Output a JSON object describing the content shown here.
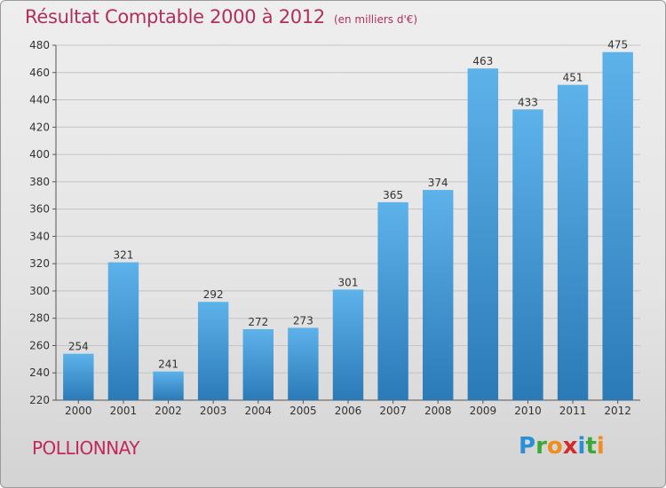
{
  "title": "Résultat Comptable 2000 à 2012",
  "subtitle": "(en milliers d'€)",
  "commune": "POLLIONNAY",
  "logo": {
    "letters": [
      "P",
      "r",
      "o",
      "x",
      "i",
      "t",
      "i"
    ],
    "colors": [
      "#2a8fd6",
      "#3aaa35",
      "#f28c1a",
      "#d42a2a",
      "#2a8fd6",
      "#3aaa35",
      "#f28c1a"
    ]
  },
  "colors": {
    "bar_top": "#5eb2ea",
    "bar_bottom": "#2a7ab8",
    "title": "#b0305a"
  },
  "chart_data": {
    "type": "bar",
    "title": "Résultat Comptable 2000 à 2012",
    "subtitle": "(en milliers d'€)",
    "categories": [
      "2000",
      "2001",
      "2002",
      "2003",
      "2004",
      "2005",
      "2006",
      "2007",
      "2008",
      "2009",
      "2010",
      "2011",
      "2012"
    ],
    "values": [
      254,
      321,
      241,
      292,
      272,
      273,
      301,
      365,
      374,
      463,
      433,
      451,
      475
    ],
    "ylim": [
      220,
      480
    ],
    "yticks": [
      220,
      240,
      260,
      280,
      300,
      320,
      340,
      360,
      380,
      400,
      420,
      440,
      460,
      480
    ],
    "grid": true,
    "data_labels": true
  }
}
